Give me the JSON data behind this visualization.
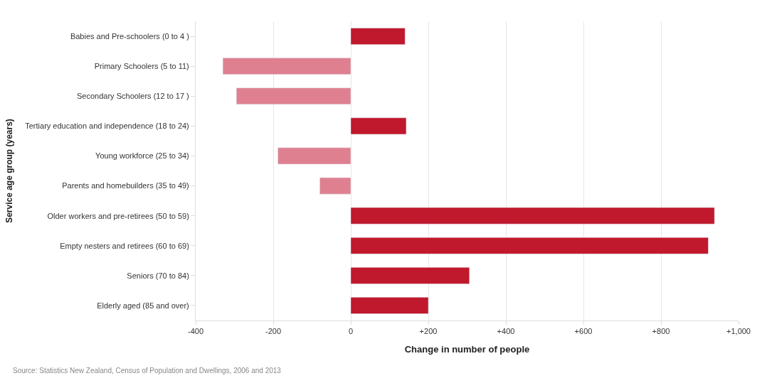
{
  "chart_data": {
    "type": "bar",
    "orientation": "horizontal",
    "xlabel": "Change in number of people",
    "ylabel": "Service age group (years)",
    "categories": [
      "Babies and Pre-schoolers (0 to 4 )",
      "Primary Schoolers (5 to 11)",
      "Secondary Schoolers (12 to 17 )",
      "Tertiary education and independence (18 to 24)",
      "Young workforce (25 to 34)",
      "Parents and homebuilders (35 to 49)",
      "Older workers and pre-retirees (50 to 59)",
      "Empty nesters and retirees (60 to 69)",
      "Seniors (70 to 84)",
      "Elderly aged (85 and over)"
    ],
    "values": [
      140,
      -330,
      -295,
      143,
      -188,
      -80,
      938,
      922,
      306,
      200
    ],
    "colors": [
      "#c0182c",
      "#de8090",
      "#de8090",
      "#c0182c",
      "#de8090",
      "#de8090",
      "#c0182c",
      "#c0182c",
      "#c0182c",
      "#c0182c"
    ],
    "xlim": [
      -400,
      1000
    ],
    "xticks": [
      -400,
      -200,
      0,
      {
        "value": 200,
        "label": "+200"
      },
      {
        "value": 400,
        "label": "+400"
      },
      {
        "value": 600,
        "label": "+600"
      },
      {
        "value": 800,
        "label": "+800"
      },
      {
        "value": 1000,
        "label": "+1,000"
      }
    ],
    "grid": "x",
    "legend": false,
    "annotations": [
      "Source: Statistics New Zealand, Census of Population and Dwellings, 2006 and 2013"
    ]
  }
}
